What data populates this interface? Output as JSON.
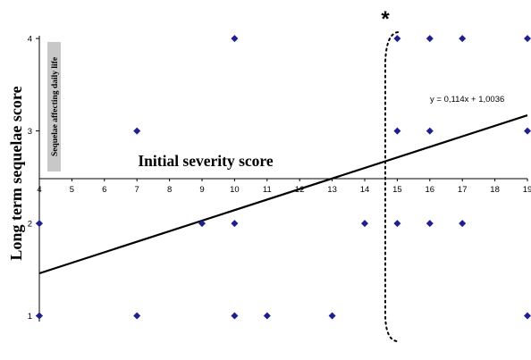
{
  "chart_data": {
    "type": "scatter",
    "xlabel": "Initial severity score",
    "ylabel": "Long term sequelae score",
    "x_ticks": [
      "4",
      "5",
      "6",
      "7",
      "8",
      "9",
      "10",
      "11",
      "12",
      "13",
      "14",
      "15",
      "16",
      "17",
      "18",
      "19"
    ],
    "y_ticks": [
      "1",
      "2",
      "3",
      "4"
    ],
    "xlim": [
      4,
      19
    ],
    "ylim": [
      0.87,
      4.03
    ],
    "grid": false,
    "series": [
      {
        "points": [
          {
            "x": 4,
            "y": 1
          },
          {
            "x": 4,
            "y": 2
          },
          {
            "x": 7,
            "y": 1
          },
          {
            "x": 7,
            "y": 3
          },
          {
            "x": 9,
            "y": 2
          },
          {
            "x": 10,
            "y": 1
          },
          {
            "x": 10,
            "y": 2
          },
          {
            "x": 10,
            "y": 4
          },
          {
            "x": 11,
            "y": 1
          },
          {
            "x": 13,
            "y": 1
          },
          {
            "x": 14,
            "y": 2
          },
          {
            "x": 15,
            "y": 2
          },
          {
            "x": 15,
            "y": 3
          },
          {
            "x": 15,
            "y": 4
          },
          {
            "x": 16,
            "y": 2
          },
          {
            "x": 16,
            "y": 3
          },
          {
            "x": 16,
            "y": 4
          },
          {
            "x": 17,
            "y": 2
          },
          {
            "x": 17,
            "y": 4
          },
          {
            "x": 19,
            "y": 1
          },
          {
            "x": 19,
            "y": 3
          },
          {
            "x": 19,
            "y": 4
          }
        ]
      }
    ],
    "trendline": {
      "equation": "y = 0,114x + 1,0036",
      "slope": 0.114,
      "intercept": 1.0036
    },
    "annotations": {
      "threshold_label": "Sequelae affecting daily life",
      "marker": "*"
    },
    "colors": {
      "point": "#1f1f8f",
      "line": "#000000",
      "text": "#000000",
      "annotation_box": "#c8c8c8"
    }
  }
}
